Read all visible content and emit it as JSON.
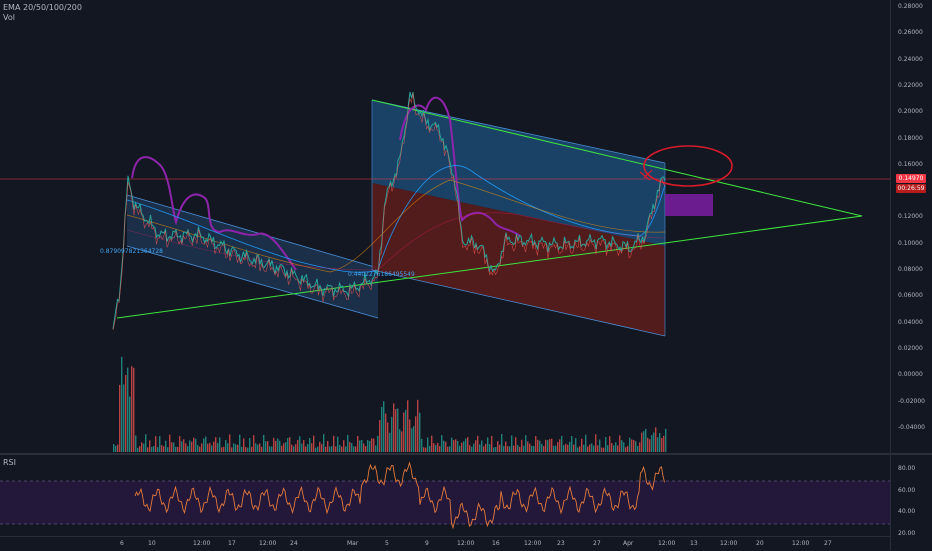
{
  "legend": {
    "ema": "EMA 20/50/100/200",
    "vol": "Vol",
    "rsi": "RSI"
  },
  "price_ticks": [
    "0.28000",
    "0.26000",
    "0.24000",
    "0.22000",
    "0.20000",
    "0.18000",
    "0.16000",
    "0.14000",
    "0.12000",
    "0.10000",
    "0.08000",
    "0.06000",
    "0.04000",
    "0.02000",
    "0.00000",
    "-0.02000",
    "-0.04000"
  ],
  "rsi_ticks": [
    "80.00",
    "60.00",
    "40.00",
    "20.00"
  ],
  "time_labels": [
    "6",
    "10",
    "12:00",
    "17",
    "12:00",
    "24",
    "Mar",
    "5",
    "9",
    "12:00",
    "16",
    "12:00",
    "23",
    "27",
    "Apr",
    "12:00",
    "13",
    "12:00",
    "20",
    "12:00",
    "27"
  ],
  "badges": {
    "last_price": "0.14970",
    "price2": "00:26:59"
  },
  "annotations": {
    "fib_label_1": "0.879097821364728",
    "fib_label_2": "0.4402276186495549"
  },
  "colors": {
    "bg": "#131722",
    "up": "#26a69a",
    "down": "#ef5350",
    "channel": "#4a90d9",
    "channel_fill_blue": "#1f4e79",
    "channel_fill_red": "#6b1f1f",
    "trendline": "#3ee63e",
    "purple_draw": "#8e24aa",
    "red_draw": "#d81b2b",
    "rsi_line": "#e4793b",
    "rsi_band": "#2a1f3d",
    "last_price_line": "#f23645"
  }
}
